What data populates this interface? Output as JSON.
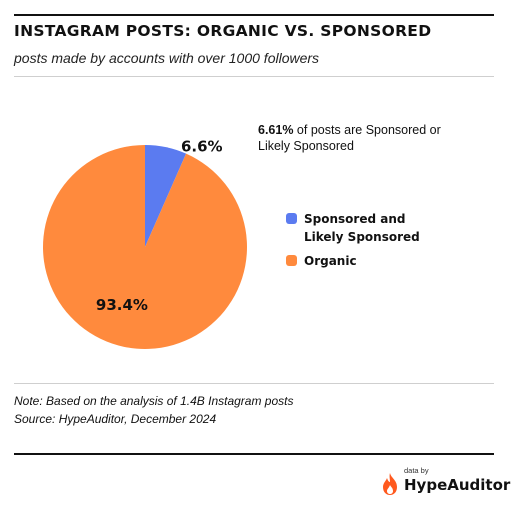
{
  "header": {
    "title": "INSTAGRAM POSTS: ORGANIC VS. SPONSORED",
    "subtitle": "posts made by accounts with over 1000 followers"
  },
  "chart_data": {
    "type": "pie",
    "slices": [
      {
        "label": "Sponsored and Likely Sponsored",
        "value": 6.6,
        "display": "6.6%",
        "color": "#5B7BF0"
      },
      {
        "label": "Organic",
        "value": 93.4,
        "display": "93.4%",
        "color": "#FF8A3D"
      }
    ],
    "legend_position": "right"
  },
  "annotation": {
    "bold": "6.61%",
    "rest": " of posts are Sponsored or Likely Sponsored"
  },
  "legend": {
    "items": [
      {
        "label": "Sponsored and Likely Sponsored",
        "color": "#5B7BF0"
      },
      {
        "label": "Organic",
        "color": "#FF8A3D"
      }
    ]
  },
  "footer": {
    "note": "Note: Based on the analysis of 1.4B Instagram posts",
    "source": "Source: HypeAuditor, December 2024",
    "brand_prefix": "data by",
    "brand_name": "HypeAuditor",
    "brand_icon": "flame-icon",
    "brand_color": "#FF5A1F"
  }
}
